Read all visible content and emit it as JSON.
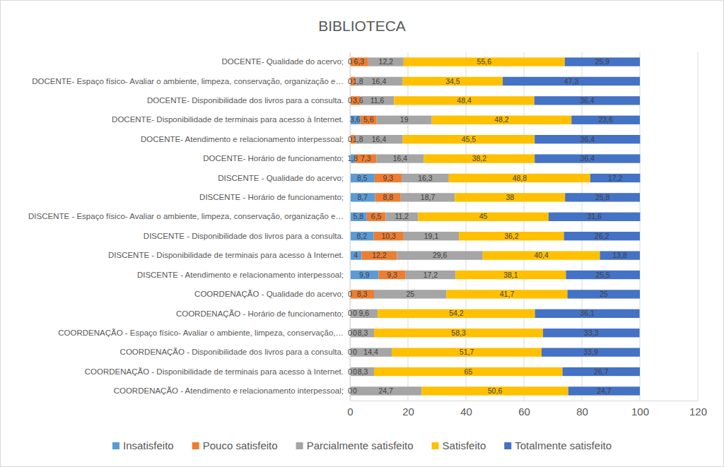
{
  "chart_data": {
    "type": "bar",
    "title": "BIBLIOTECA",
    "orientation": "horizontal",
    "stacked": true,
    "data_labels": true,
    "grid": true,
    "legend": "bottom",
    "xlim": [
      0,
      120
    ],
    "xticks": [
      0,
      20,
      40,
      60,
      80,
      100,
      120
    ],
    "categories": [
      "DOCENTE- Qualidade do acervo;",
      "DOCENTE- Espaço físico- Avaliar o ambiente, limpeza, conservação, organização e…",
      "DOCENTE- Disponibilidade dos livros para a consulta.",
      "DOCENTE- Disponibilidade de terminais para acesso à Internet.",
      "DOCENTE- Atendimento e relacionamento interpessoal;",
      "DOCENTE-  Horário de funcionamento;",
      "DISCENTE - Qualidade do acervo;",
      "DISCENTE - Horário de funcionamento;",
      "DISCENTE - Espaço físico- Avaliar o ambiente, limpeza, conservação, organização e…",
      "DISCENTE - Disponibilidade dos livros para a consulta.",
      "DISCENTE - Disponibilidade de terminais para acesso à Internet.",
      "DISCENTE - Atendimento e relacionamento interpessoal;",
      "COORDENAÇÃO -  Qualidade do acervo;",
      "COORDENAÇÃO -  Horário de funcionamento;",
      "COORDENAÇÃO -  Espaço físico- Avaliar o ambiente, limpeza, conservação,…",
      "COORDENAÇÃO -  Disponibilidade dos livros para a consulta.",
      "COORDENAÇÃO -  Disponibilidade de terminais para acesso à Internet.",
      "COORDENAÇÃO -  Atendimento e relacionamento interpessoal;"
    ],
    "series": [
      {
        "name": "Insatisfeito",
        "color": "#5b9bd5",
        "values": [
          0,
          0,
          0,
          3.6,
          0,
          1.8,
          8.5,
          8.7,
          5.8,
          8.2,
          4,
          9.9,
          0,
          0,
          0,
          0,
          0,
          0
        ],
        "value_labels": [
          "0",
          "0",
          "0",
          "3,6",
          "0",
          "1,8",
          "8,5",
          "8,7",
          "5,8",
          "8,2",
          "4",
          "9,9",
          "0",
          "0",
          "0",
          "0",
          "0",
          "0"
        ]
      },
      {
        "name": "Pouco satisfeito",
        "color": "#ed7d31",
        "values": [
          6.3,
          1.8,
          3.6,
          5.6,
          1.8,
          7.3,
          9.3,
          8.8,
          6.5,
          10.3,
          12.2,
          9.3,
          8.3,
          0,
          0,
          0,
          0,
          0
        ],
        "value_labels": [
          "6,3",
          "1,8",
          "3,6",
          "5,6",
          "1,8",
          "7,3",
          "9,3",
          "8,8",
          "6,5",
          "10,3",
          "12,2",
          "9,3",
          "8,3",
          "0",
          "0",
          "0",
          "0",
          "0"
        ]
      },
      {
        "name": "Parcialmente satisfeito",
        "color": "#a5a5a5",
        "values": [
          12.2,
          16.4,
          11.6,
          19,
          16.4,
          16.4,
          16.3,
          18.7,
          11.2,
          19.1,
          29.6,
          17.2,
          25,
          9.6,
          8.3,
          14.4,
          8.3,
          24.7
        ],
        "value_labels": [
          "12,2",
          "16,4",
          "11,6",
          "19",
          "16,4",
          "16,4",
          "16,3",
          "18,7",
          "11,2",
          "19,1",
          "29,6",
          "17,2",
          "25",
          "9,6",
          "8,3",
          "14,4",
          "8,3",
          "24,7"
        ]
      },
      {
        "name": "Satisfeito",
        "color": "#ffc000",
        "values": [
          55.6,
          34.5,
          48.4,
          48.2,
          45.5,
          38.2,
          48.8,
          38,
          45,
          36.2,
          40.4,
          38.1,
          41.7,
          54.2,
          58.3,
          51.7,
          65,
          50.6
        ],
        "value_labels": [
          "55,6",
          "34,5",
          "48,4",
          "48,2",
          "45,5",
          "38,2",
          "48,8",
          "38",
          "45",
          "36,2",
          "40,4",
          "38,1",
          "41,7",
          "54,2",
          "58,3",
          "51,7",
          "65",
          "50,6"
        ]
      },
      {
        "name": "Totalmente satisfeito",
        "color": "#4472c4",
        "values": [
          25.9,
          47.3,
          36.4,
          23.6,
          36.4,
          36.4,
          17.2,
          25.8,
          31.6,
          26.2,
          13.8,
          25.5,
          25,
          36.1,
          33.3,
          33.9,
          26.7,
          24.7
        ],
        "value_labels": [
          "25,9",
          "47,3",
          "36,4",
          "23,6",
          "36,4",
          "36,4",
          "17,2",
          "25,8",
          "31,6",
          "26,2",
          "13,8",
          "25,5",
          "25",
          "36,1",
          "33,3",
          "33,9",
          "26,7",
          "24,7"
        ]
      }
    ]
  }
}
